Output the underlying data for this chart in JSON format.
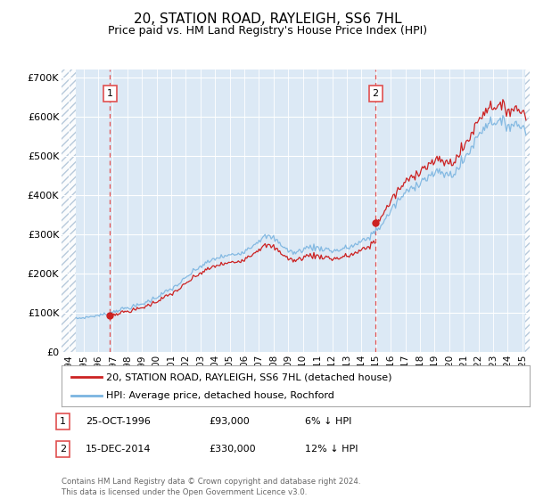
{
  "title": "20, STATION ROAD, RAYLEIGH, SS6 7HL",
  "subtitle": "Price paid vs. HM Land Registry's House Price Index (HPI)",
  "title_fontsize": 11,
  "subtitle_fontsize": 9,
  "ylim": [
    0,
    720000
  ],
  "yticks": [
    0,
    100000,
    200000,
    300000,
    400000,
    500000,
    600000,
    700000
  ],
  "ytick_labels": [
    "£0",
    "£100K",
    "£200K",
    "£300K",
    "£400K",
    "£500K",
    "£600K",
    "£700K"
  ],
  "bg_color": "#dce9f5",
  "hatch_color": "#b0c4d8",
  "line_color_hpi": "#7ab4e0",
  "line_color_price": "#cc2222",
  "grid_color": "#ffffff",
  "vline_color": "#e05050",
  "purchase1_x": 1996.82,
  "purchase1_y": 93000,
  "purchase2_x": 2014.96,
  "purchase2_y": 330000,
  "legend_label1": "20, STATION ROAD, RAYLEIGH, SS6 7HL (detached house)",
  "legend_label2": "HPI: Average price, detached house, Rochford",
  "annotation1_label": "1",
  "annotation2_label": "2",
  "table_row1": [
    "1",
    "25-OCT-1996",
    "£93,000",
    "6% ↓ HPI"
  ],
  "table_row2": [
    "2",
    "15-DEC-2014",
    "£330,000",
    "12% ↓ HPI"
  ],
  "footer": "Contains HM Land Registry data © Crown copyright and database right 2024.\nThis data is licensed under the Open Government Licence v3.0.",
  "xmin": 1993.5,
  "xmax": 2025.5,
  "xtick_years": [
    1994,
    1995,
    1996,
    1997,
    1998,
    1999,
    2000,
    2001,
    2002,
    2003,
    2004,
    2005,
    2006,
    2007,
    2008,
    2009,
    2010,
    2011,
    2012,
    2013,
    2014,
    2015,
    2016,
    2017,
    2018,
    2019,
    2020,
    2021,
    2022,
    2023,
    2024,
    2025
  ]
}
